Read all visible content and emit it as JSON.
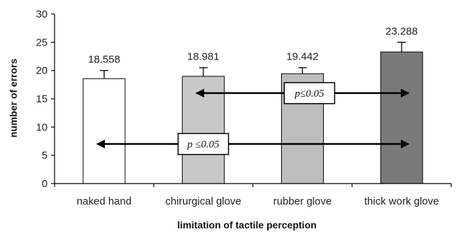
{
  "chart_data": {
    "type": "bar",
    "title": "",
    "xlabel": "limitation of tactile perception",
    "ylabel": "number of errors",
    "categories": [
      "naked hand",
      "chirurgical glove",
      "rubber glove",
      "thick work glove"
    ],
    "values": [
      18.558,
      18.981,
      19.442,
      23.288
    ],
    "value_labels": [
      "18.558",
      "18.981",
      "19.442",
      "23.288"
    ],
    "error_upper": [
      20.0,
      20.5,
      20.5,
      25.0
    ],
    "bar_colors": [
      "#ffffff",
      "#c8c8c8",
      "#bdbdbd",
      "#7a7a7a"
    ],
    "ylim": [
      0,
      30
    ],
    "yticks": [
      0,
      5,
      10,
      15,
      20,
      25,
      30
    ],
    "ytick_labels": [
      "0",
      "5",
      "10",
      "15",
      "20",
      "25",
      "30"
    ],
    "grid": false,
    "annotations": [
      {
        "text": "p≤0.05",
        "y": 16,
        "from_category": "chirurgical glove",
        "to_category": "thick work glove",
        "box_category": "rubber glove"
      },
      {
        "text": "p ≤0.05",
        "y": 7,
        "from_category": "naked hand",
        "to_category": "thick work glove",
        "box_category": "chirurgical glove"
      }
    ]
  }
}
